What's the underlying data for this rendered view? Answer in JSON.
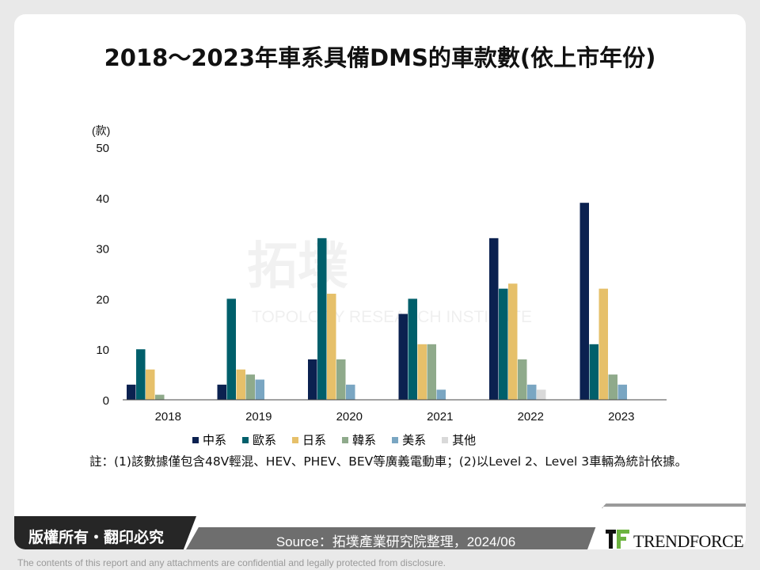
{
  "title": "2018～2023年車系具備DMS的車款數(依上市年份)",
  "chart_data": {
    "type": "bar",
    "title": "2018～2023年車系具備DMS的車款數(依上市年份)",
    "ylabel": "(款)",
    "ylim": [
      0,
      50
    ],
    "yticks": [
      0,
      10,
      20,
      30,
      40,
      50
    ],
    "grid": false,
    "legend_position": "bottom",
    "categories": [
      "2018",
      "2019",
      "2020",
      "2021",
      "2022",
      "2023"
    ],
    "series": [
      {
        "name": "中系",
        "color": "#0b2150",
        "values": [
          3,
          3,
          8,
          17,
          32,
          39
        ]
      },
      {
        "name": "歐系",
        "color": "#005f6b",
        "values": [
          10,
          20,
          32,
          20,
          22,
          11
        ]
      },
      {
        "name": "日系",
        "color": "#e6c06a",
        "values": [
          6,
          6,
          21,
          11,
          23,
          22
        ]
      },
      {
        "name": "韓系",
        "color": "#8faa8b",
        "values": [
          1,
          5,
          8,
          11,
          8,
          5
        ]
      },
      {
        "name": "美系",
        "color": "#7aa6c2",
        "values": [
          0,
          4,
          3,
          2,
          3,
          3
        ]
      },
      {
        "name": "其他",
        "color": "#d9d9d9",
        "values": [
          0,
          0,
          0,
          0,
          2,
          0
        ]
      }
    ]
  },
  "watermark": {
    "cn": "拓墣",
    "en": "TOPOLOGY RESEARCH INSTITUTE"
  },
  "note": "註：(1)該數據僅包含48V輕混、HEV、PHEV、BEV等廣義電動車；(2)以Level 2、Level 3車輛為統計依據。",
  "footer": {
    "copyright": "版權所有・翻印必究",
    "source": "Source：拓墣產業研究院整理，2024/06",
    "logo": "TRENDFORCE",
    "disclaimer": "The contents of this report and any attachments are confidential and legally protected from disclosure."
  }
}
